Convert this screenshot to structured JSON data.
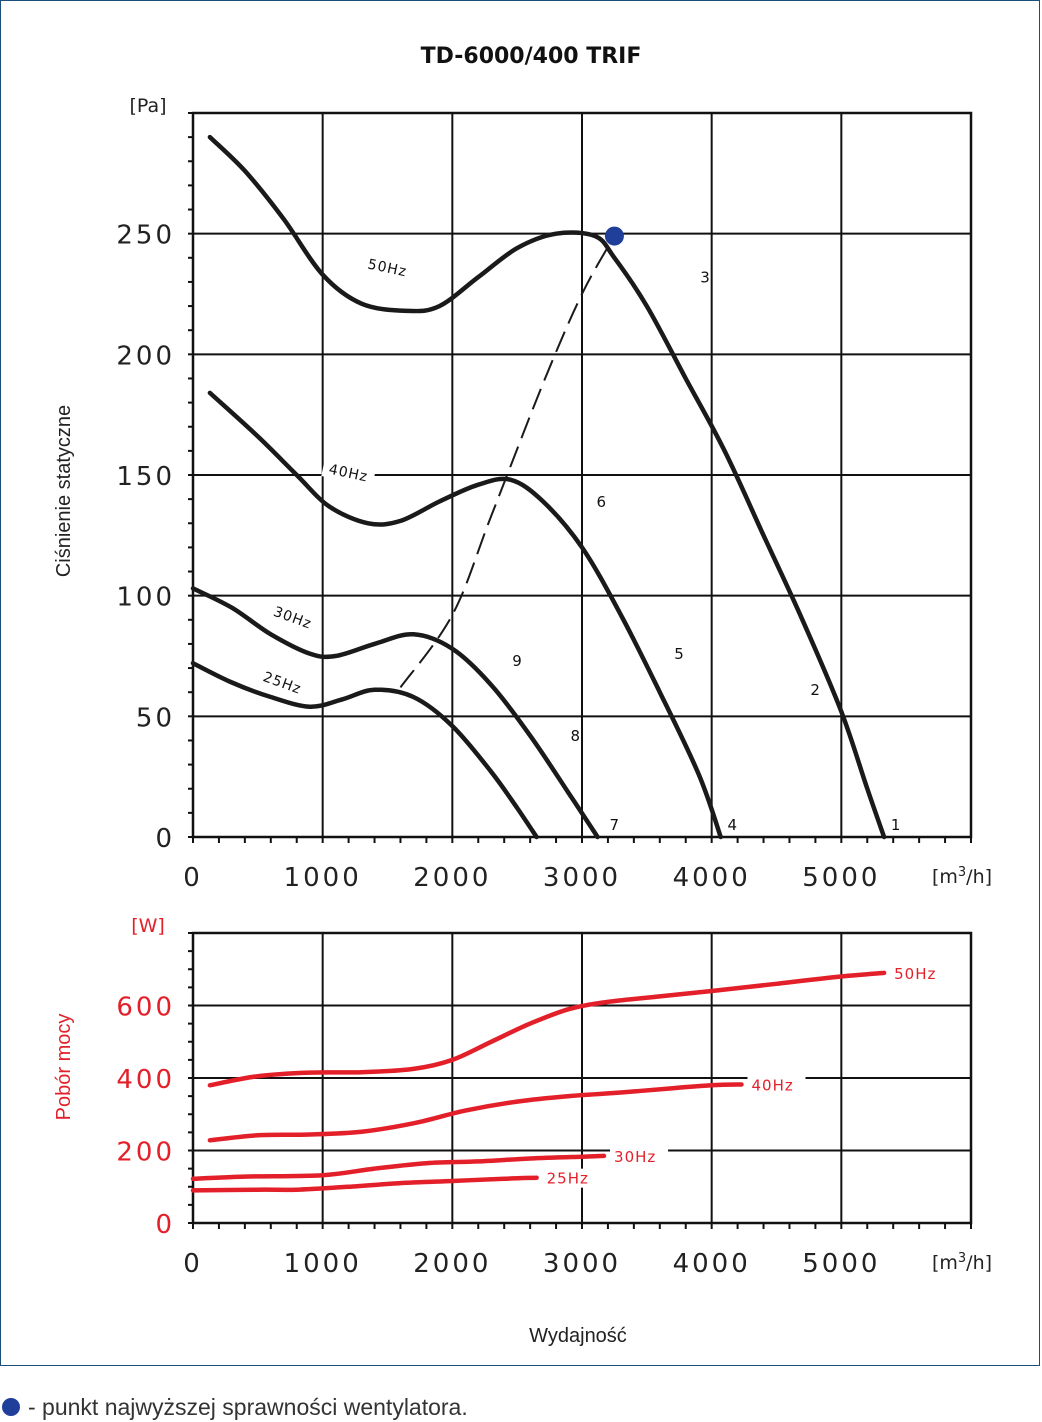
{
  "title": "TD-6000/400 TRIF",
  "legend_text": "- punkt najwyższej sprawności wentylatora.",
  "colors": {
    "curve": "#1a1a1a",
    "power": "#e3202a",
    "marker": "#1f3f9a",
    "grid": "#111111"
  },
  "chart_data": [
    {
      "type": "line",
      "title": "TD-6000/400 TRIF",
      "xlabel": "",
      "ylabel": "Ciśnienie statyczne",
      "x_unit": "[m³/h]",
      "y_unit": "[Pa]",
      "xlim": [
        0,
        6000
      ],
      "ylim": [
        0,
        300
      ],
      "x_ticks": [
        "0",
        "1000",
        "2000",
        "3000",
        "4000",
        "5000"
      ],
      "y_ticks": [
        "0",
        "50",
        "100",
        "150",
        "200",
        "250"
      ],
      "grid": true,
      "series": [
        {
          "name": "50Hz",
          "label_x": 1500,
          "label_y": 236,
          "label_rot": 12,
          "points": [
            [
              130,
              290
            ],
            [
              400,
              276
            ],
            [
              700,
              256
            ],
            [
              1000,
              233
            ],
            [
              1300,
              221
            ],
            [
              1650,
              218
            ],
            [
              1900,
              220
            ],
            [
              2200,
              232
            ],
            [
              2500,
              244
            ],
            [
              2800,
              250
            ],
            [
              3100,
              249
            ],
            [
              3250,
              240
            ],
            [
              3500,
              220
            ],
            [
              3800,
              190
            ],
            [
              4100,
              160
            ],
            [
              4400,
              125
            ],
            [
              4700,
              90
            ],
            [
              5000,
              52
            ],
            [
              5200,
              20
            ],
            [
              5330,
              0
            ]
          ]
        },
        {
          "name": "40Hz",
          "label_x": 1200,
          "label_y": 151,
          "label_rot": 12,
          "points": [
            [
              130,
              184
            ],
            [
              500,
              166
            ],
            [
              800,
              150
            ],
            [
              1050,
              137
            ],
            [
              1350,
              130
            ],
            [
              1600,
              131
            ],
            [
              1900,
              139
            ],
            [
              2200,
              146
            ],
            [
              2450,
              148
            ],
            [
              2700,
              139
            ],
            [
              3000,
              120
            ],
            [
              3300,
              92
            ],
            [
              3600,
              60
            ],
            [
              3900,
              26
            ],
            [
              4070,
              0
            ]
          ]
        },
        {
          "name": "30Hz",
          "label_x": 770,
          "label_y": 91,
          "label_rot": 20,
          "points": [
            [
              0,
              103
            ],
            [
              300,
              95
            ],
            [
              600,
              84
            ],
            [
              900,
              76
            ],
            [
              1100,
              75
            ],
            [
              1400,
              80
            ],
            [
              1700,
              84
            ],
            [
              2000,
              78
            ],
            [
              2300,
              63
            ],
            [
              2600,
              42
            ],
            [
              2900,
              18
            ],
            [
              3120,
              0
            ]
          ]
        },
        {
          "name": "25Hz",
          "label_x": 690,
          "label_y": 64,
          "label_rot": 20,
          "points": [
            [
              0,
              72
            ],
            [
              300,
              64
            ],
            [
              600,
              58
            ],
            [
              900,
              54
            ],
            [
              1150,
              57
            ],
            [
              1400,
              61
            ],
            [
              1700,
              58
            ],
            [
              2000,
              46
            ],
            [
              2300,
              27
            ],
            [
              2500,
              12
            ],
            [
              2650,
              0
            ]
          ]
        }
      ],
      "points_labels": [
        {
          "label": "1",
          "x": 5320,
          "y": 2
        },
        {
          "label": "2",
          "x": 4700,
          "y": 58
        },
        {
          "label": "3",
          "x": 3850,
          "y": 229
        },
        {
          "label": "4",
          "x": 4060,
          "y": 2
        },
        {
          "label": "5",
          "x": 3650,
          "y": 73
        },
        {
          "label": "6",
          "x": 3050,
          "y": 136
        },
        {
          "label": "7",
          "x": 3150,
          "y": 2
        },
        {
          "label": "8",
          "x": 2850,
          "y": 39
        },
        {
          "label": "9",
          "x": 2400,
          "y": 70
        }
      ],
      "efficiency_line": [
        [
          1600,
          62
        ],
        [
          2000,
          92
        ],
        [
          2300,
          133
        ],
        [
          2700,
          188
        ],
        [
          3000,
          225
        ],
        [
          3250,
          249
        ]
      ],
      "efficiency_point": {
        "x": 3250,
        "y": 249
      }
    },
    {
      "type": "line",
      "title": "",
      "xlabel": "Wydajność",
      "ylabel": "Pobór mocy",
      "x_unit": "[m³/h]",
      "y_unit": "[W]",
      "xlim": [
        0,
        6000
      ],
      "ylim": [
        0,
        800
      ],
      "x_ticks": [
        "0",
        "1000",
        "2000",
        "3000",
        "4000",
        "5000"
      ],
      "y_ticks": [
        "0",
        "200",
        "400",
        "600"
      ],
      "grid": true,
      "series": [
        {
          "name": "50Hz",
          "points": [
            [
              130,
              380
            ],
            [
              500,
              405
            ],
            [
              900,
              415
            ],
            [
              1300,
              416
            ],
            [
              1700,
              425
            ],
            [
              2000,
              450
            ],
            [
              2300,
              500
            ],
            [
              2600,
              550
            ],
            [
              2900,
              590
            ],
            [
              3200,
              610
            ],
            [
              3600,
              625
            ],
            [
              4000,
              640
            ],
            [
              4500,
              660
            ],
            [
              5000,
              680
            ],
            [
              5330,
              690
            ]
          ]
        },
        {
          "name": "40Hz",
          "points": [
            [
              130,
              228
            ],
            [
              500,
              242
            ],
            [
              900,
              244
            ],
            [
              1300,
              252
            ],
            [
              1700,
              275
            ],
            [
              2100,
              310
            ],
            [
              2500,
              335
            ],
            [
              2900,
              350
            ],
            [
              3300,
              360
            ],
            [
              3700,
              372
            ],
            [
              4000,
              380
            ],
            [
              4230,
              382
            ]
          ]
        },
        {
          "name": "30Hz",
          "points": [
            [
              0,
              122
            ],
            [
              400,
              128
            ],
            [
              1000,
              132
            ],
            [
              1400,
              150
            ],
            [
              1800,
              165
            ],
            [
              2200,
              170
            ],
            [
              2600,
              178
            ],
            [
              3000,
              183
            ],
            [
              3170,
              185
            ]
          ]
        },
        {
          "name": "25Hz",
          "points": [
            [
              0,
              90
            ],
            [
              500,
              92
            ],
            [
              800,
              92
            ],
            [
              1200,
              100
            ],
            [
              1600,
              110
            ],
            [
              2000,
              116
            ],
            [
              2400,
              122
            ],
            [
              2650,
              125
            ]
          ]
        }
      ]
    }
  ]
}
